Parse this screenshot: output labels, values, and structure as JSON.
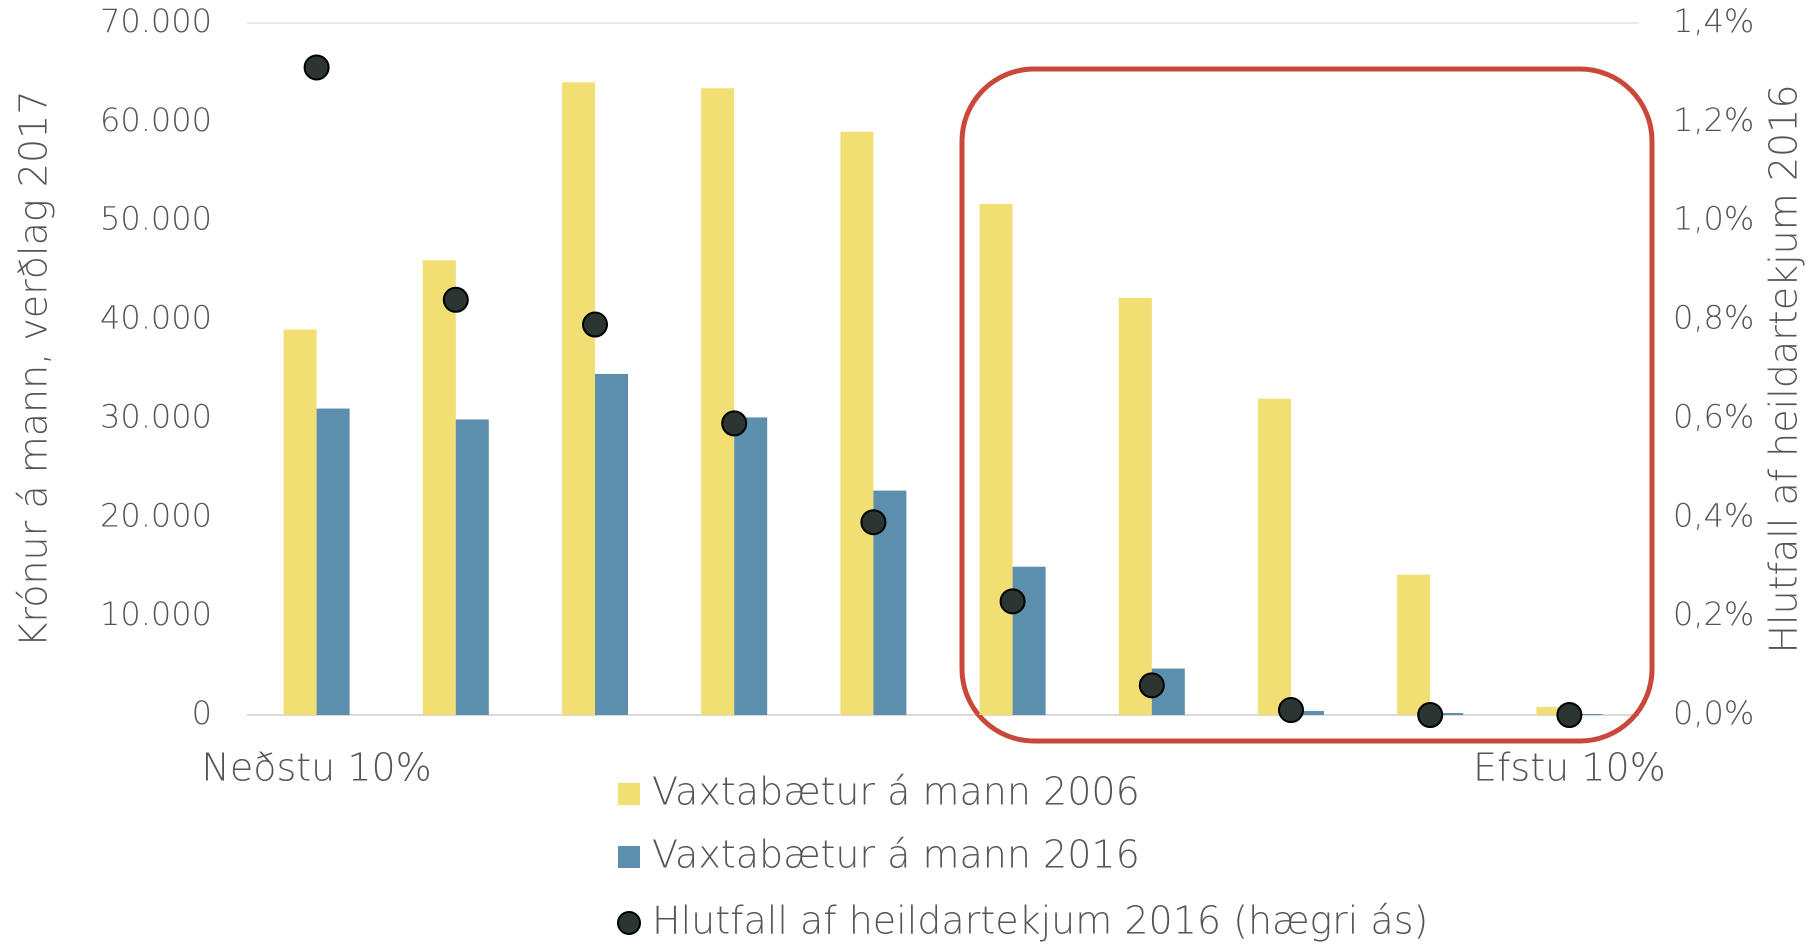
{
  "chart_data": {
    "type": "bar",
    "y_label": "Krónur á mann, verðlag 2017",
    "y2_label": "Hlutfall af heildartekjum 2016",
    "categories": [
      "Neðstu 10%",
      null,
      null,
      null,
      null,
      null,
      null,
      null,
      null,
      "Efstu 10%"
    ],
    "series": [
      {
        "name": "Vaxtabætur á mann 2006",
        "color": "#f2df74",
        "type": "bar",
        "values": [
          39000,
          46000,
          64000,
          63400,
          59000,
          51700,
          42200,
          32000,
          14200,
          800
        ]
      },
      {
        "name": "Vaxtabætur á mann 2016",
        "color": "#5b8fad",
        "type": "bar",
        "values": [
          31000,
          29900,
          34500,
          30100,
          22700,
          15000,
          4700,
          400,
          200,
          100
        ]
      },
      {
        "name": "Hlutfall af heildartekjum 2016 (hægri ás)",
        "color": "#2b3633",
        "type": "scatter",
        "axis": "y2",
        "values": [
          1.31,
          0.84,
          0.79,
          0.59,
          0.39,
          0.23,
          0.06,
          0.01,
          0,
          0
        ]
      }
    ],
    "ylim": [
      0,
      70000
    ],
    "yticks": [
      0,
      {
        "value": 10000,
        "label": "10.000"
      },
      {
        "value": 20000,
        "label": "20.000"
      },
      {
        "value": 30000,
        "label": "30.000"
      },
      {
        "value": 40000,
        "label": "40.000"
      },
      {
        "value": 50000,
        "label": "50.000"
      },
      {
        "value": 60000,
        "label": "60.000"
      },
      {
        "value": 70000,
        "label": "70.000"
      }
    ],
    "y2lim": [
      0,
      1.4
    ],
    "y2ticks": [
      {
        "value": 0,
        "label": "0,0%"
      },
      {
        "value": 0.2,
        "label": "0,2%"
      },
      {
        "value": 0.4,
        "label": "0,4%"
      },
      {
        "value": 0.6,
        "label": "0,6%"
      },
      {
        "value": 0.8,
        "label": "0,8%"
      },
      {
        "value": 1.0,
        "label": "1,0%"
      },
      {
        "value": 1.2,
        "label": "1,2%"
      },
      {
        "value": 1.4,
        "label": "1,4%"
      }
    ],
    "grid": false,
    "legend": "bottom"
  }
}
